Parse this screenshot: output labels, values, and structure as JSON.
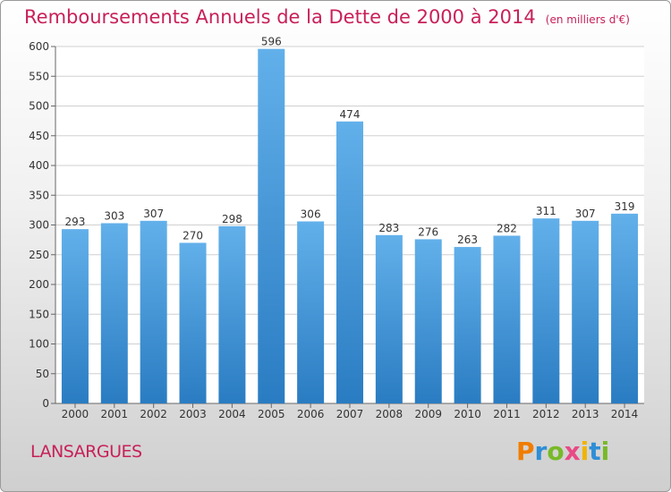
{
  "header": {
    "title": "Remboursements Annuels de la Dette de 2000 à 2014",
    "unit": "(en milliers d'€)"
  },
  "footer": {
    "commune": "LANSARGUES",
    "brand": "Proxiti"
  },
  "colors": {
    "title": "#c8205a",
    "bar_top": "#62b0ea",
    "bar_bottom": "#2a7cc2"
  },
  "chart_data": {
    "type": "bar",
    "title": "Remboursements Annuels de la Dette de 2000 à 2014",
    "categories": [
      "2000",
      "2001",
      "2002",
      "2003",
      "2004",
      "2005",
      "2006",
      "2007",
      "2008",
      "2009",
      "2010",
      "2011",
      "2012",
      "2013",
      "2014"
    ],
    "values": [
      293,
      303,
      307,
      270,
      298,
      596,
      306,
      474,
      283,
      276,
      263,
      282,
      311,
      307,
      319
    ],
    "ylim": [
      0,
      600
    ],
    "yticks": [
      0,
      50,
      100,
      150,
      200,
      250,
      300,
      350,
      400,
      450,
      500,
      550,
      600
    ],
    "grid": true,
    "data_labels": true
  }
}
